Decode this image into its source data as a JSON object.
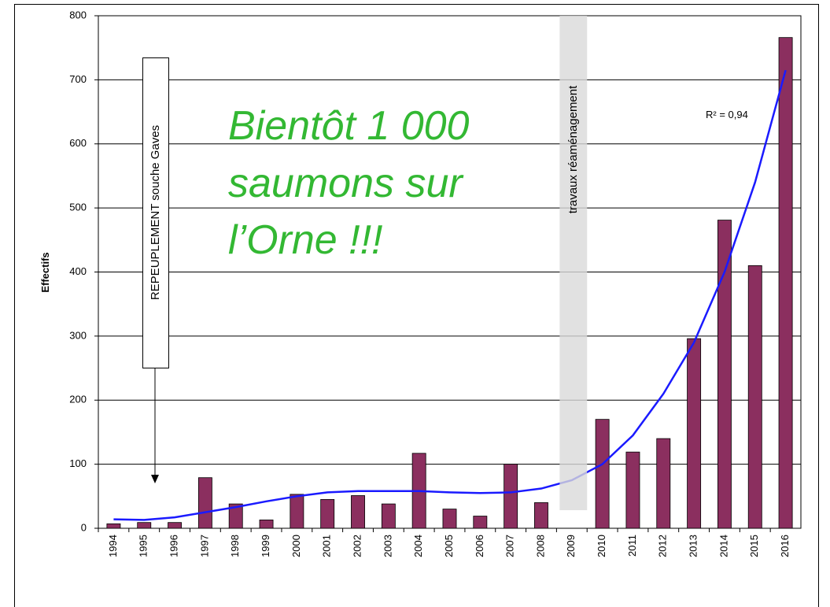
{
  "chart_data": {
    "type": "bar",
    "ylabel": "Effectifs",
    "categories": [
      "1994",
      "1995",
      "1996",
      "1997",
      "1998",
      "1999",
      "2000",
      "2001",
      "2002",
      "2003",
      "2004",
      "2005",
      "2006",
      "2007",
      "2008",
      "2009",
      "2010",
      "2011",
      "2012",
      "2013",
      "2014",
      "2015",
      "2016"
    ],
    "values": [
      7,
      9,
      9,
      79,
      38,
      13,
      53,
      45,
      51,
      38,
      117,
      30,
      19,
      100,
      40,
      null,
      170,
      119,
      140,
      296,
      481,
      410,
      766
    ],
    "color": "#8b2f5f",
    "trend": {
      "values": [
        14,
        13,
        17,
        25,
        33,
        42,
        50,
        56,
        58,
        58,
        58,
        56,
        55,
        56,
        62,
        75,
        100,
        145,
        210,
        290,
        400,
        540,
        715
      ],
      "color": "#1a1aff"
    },
    "ylim": [
      0,
      800
    ],
    "yticks": [
      0,
      100,
      200,
      300,
      400,
      500,
      600,
      700,
      800
    ],
    "grid": true,
    "annotations": {
      "r2": "R² = 0,94",
      "headline": [
        "Bientôt 1 000",
        "saumons sur",
        "l’Orne !!!"
      ],
      "restocking": "REPEUPLEMENT souche Gaves",
      "works": "travaux réaménagement"
    }
  }
}
